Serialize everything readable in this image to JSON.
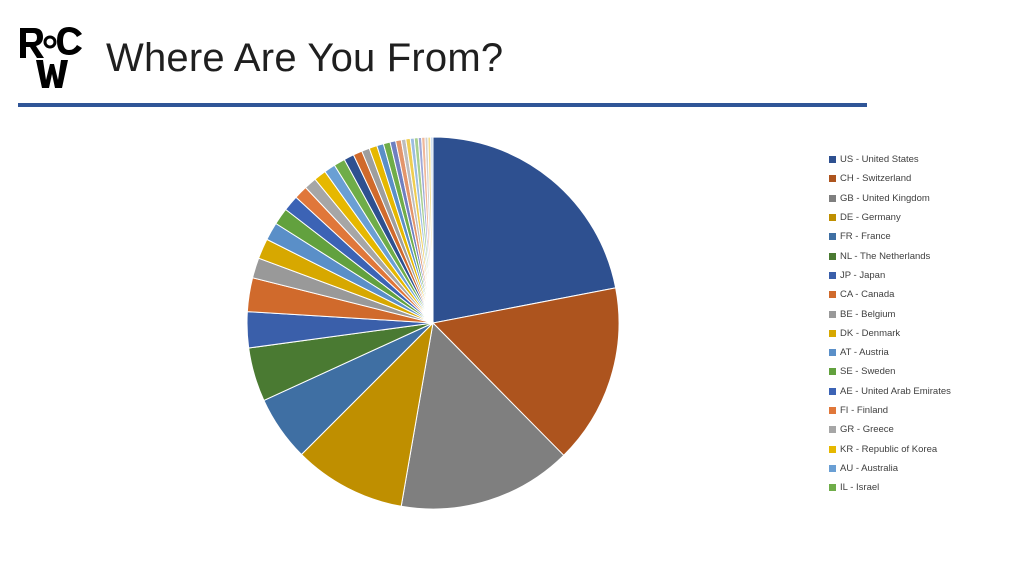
{
  "header": {
    "title": "Where Are You From?"
  },
  "logo": {
    "text": "RCW",
    "color": "#000000"
  },
  "colors": {
    "rule": "#2f5597"
  },
  "chart_data": {
    "type": "pie",
    "title": "",
    "legend_position": "right",
    "slices": [
      {
        "label": "US - United States",
        "value": 22.5,
        "color": "#2e5090"
      },
      {
        "label": "CH - Switzerland",
        "value": 16.0,
        "color": "#ad541e"
      },
      {
        "label": "GB - United Kingdom",
        "value": 15.5,
        "color": "#7f7f7f"
      },
      {
        "label": "DE - Germany",
        "value": 10.0,
        "color": "#bf8f00"
      },
      {
        "label": "FR - France",
        "value": 5.8,
        "color": "#3f6fa3"
      },
      {
        "label": "NL - The Netherlands",
        "value": 4.8,
        "color": "#4a7a32"
      },
      {
        "label": "JP - Japan",
        "value": 3.2,
        "color": "#3a5faa"
      },
      {
        "label": "CA - Canada",
        "value": 3.0,
        "color": "#d06a2c"
      },
      {
        "label": "BE - Belgium",
        "value": 1.8,
        "color": "#999999"
      },
      {
        "label": "DK - Denmark",
        "value": 1.8,
        "color": "#d7a800"
      },
      {
        "label": "AT - Austria",
        "value": 1.6,
        "color": "#5a8fc8"
      },
      {
        "label": "SE - Sweden",
        "value": 1.5,
        "color": "#62a13e"
      },
      {
        "label": "AE - United Arab Emirates",
        "value": 1.4,
        "color": "#3c63b5"
      },
      {
        "label": "FI - Finland",
        "value": 1.2,
        "color": "#e0773a"
      },
      {
        "label": "GR - Greece",
        "value": 1.1,
        "color": "#a6a6a6"
      },
      {
        "label": "KR - Republic of Korea",
        "value": 1.1,
        "color": "#e6b800"
      },
      {
        "label": "AU - Australia",
        "value": 1.0,
        "color": "#6a9fd4"
      },
      {
        "label": "IL - Israel",
        "value": 1.0,
        "color": "#6fad49"
      },
      {
        "label": "",
        "value": 0.9,
        "color": "#2e5090"
      },
      {
        "label": "",
        "value": 0.8,
        "color": "#d06a2c"
      },
      {
        "label": "",
        "value": 0.7,
        "color": "#9e9e9e"
      },
      {
        "label": "",
        "value": 0.7,
        "color": "#e6b800"
      },
      {
        "label": "",
        "value": 0.6,
        "color": "#5a8fc8"
      },
      {
        "label": "",
        "value": 0.6,
        "color": "#6fad49"
      },
      {
        "label": "",
        "value": 0.5,
        "color": "#6f7fc0"
      },
      {
        "label": "",
        "value": 0.5,
        "color": "#e3956a"
      },
      {
        "label": "",
        "value": 0.4,
        "color": "#bdbdbd"
      },
      {
        "label": "",
        "value": 0.4,
        "color": "#efcd50"
      },
      {
        "label": "",
        "value": 0.35,
        "color": "#9cbde0"
      },
      {
        "label": "",
        "value": 0.35,
        "color": "#a7cf8f"
      },
      {
        "label": "",
        "value": 0.3,
        "color": "#9fa8d8"
      },
      {
        "label": "",
        "value": 0.3,
        "color": "#f0b89a"
      },
      {
        "label": "",
        "value": 0.25,
        "color": "#d0d0d0"
      },
      {
        "label": "",
        "value": 0.25,
        "color": "#f3dc8a"
      },
      {
        "label": "",
        "value": 0.2,
        "color": "#c0d4ec"
      }
    ]
  }
}
